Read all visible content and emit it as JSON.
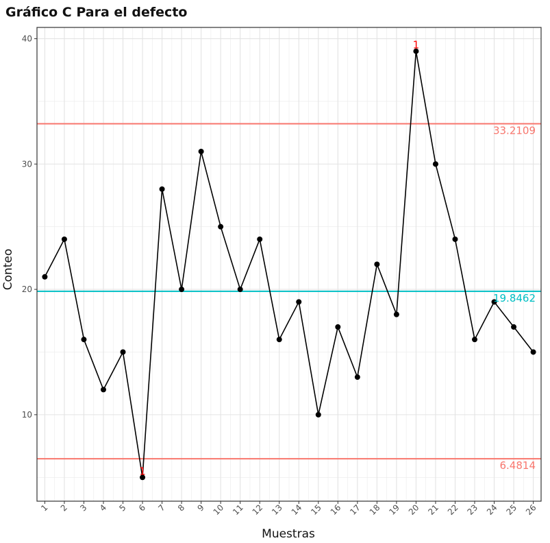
{
  "chart_data": {
    "type": "line",
    "title": "Gráfico C Para el defecto",
    "xlabel": "Muestras",
    "ylabel": "Conteo",
    "x": [
      1,
      2,
      3,
      4,
      5,
      6,
      7,
      8,
      9,
      10,
      11,
      12,
      13,
      14,
      15,
      16,
      17,
      18,
      19,
      20,
      21,
      22,
      23,
      24,
      25,
      26
    ],
    "values": [
      21,
      24,
      16,
      12,
      15,
      5,
      28,
      20,
      31,
      25,
      20,
      24,
      16,
      19,
      10,
      17,
      13,
      22,
      18,
      39,
      30,
      24,
      16,
      19,
      17,
      15
    ],
    "ylim": [
      3.1,
      40.9
    ],
    "xlim": [
      0.6,
      26.4
    ],
    "y_ticks": [
      10,
      20,
      30,
      40
    ],
    "grid": true,
    "control_limits": [
      {
        "name": "UCL",
        "value": 33.2109,
        "label": "33.2109",
        "color": "#f8766d"
      },
      {
        "name": "CL",
        "value": 19.8462,
        "label": "19.8462",
        "color": "#00bfc4"
      },
      {
        "name": "LCL",
        "value": 6.4814,
        "label": "6.4814",
        "color": "#f8766d"
      }
    ],
    "violations": [
      {
        "x": 6,
        "label": "1"
      },
      {
        "x": 20,
        "label": "1"
      }
    ],
    "violation_color": "#ff0000",
    "line_color": "#000000",
    "point_color": "#000000"
  }
}
